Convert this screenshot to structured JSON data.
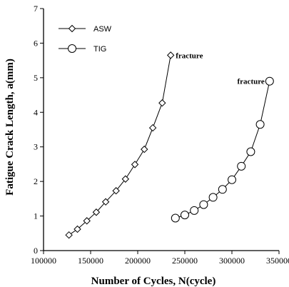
{
  "chart_data": {
    "type": "line",
    "xlabel": "Number of Cycles, N(cycle)",
    "ylabel": "Fatigue Crack Length, a(mm)",
    "xlim": [
      100000,
      350000
    ],
    "ylim": [
      0,
      7
    ],
    "xticks": [
      100000,
      150000,
      200000,
      250000,
      300000,
      350000
    ],
    "yticks": [
      0,
      1,
      2,
      3,
      4,
      5,
      6,
      7
    ],
    "grid": false,
    "legend_position": "top-left",
    "series": [
      {
        "name": "ASW",
        "marker": "diamond",
        "x": [
          127000,
          136000,
          146000,
          156000,
          166000,
          177000,
          187000,
          197000,
          207000,
          216000,
          226000,
          235000
        ],
        "y": [
          0.45,
          0.62,
          0.86,
          1.11,
          1.41,
          1.73,
          2.07,
          2.49,
          2.93,
          3.55,
          4.27,
          5.65
        ]
      },
      {
        "name": "TIG",
        "marker": "circle",
        "x": [
          240000,
          250000,
          260000,
          270000,
          280000,
          290000,
          300000,
          310000,
          320000,
          330000,
          340000
        ],
        "y": [
          0.94,
          1.03,
          1.16,
          1.33,
          1.54,
          1.77,
          2.05,
          2.44,
          2.86,
          3.65,
          4.9
        ]
      }
    ],
    "annotations": [
      {
        "text": "fracture",
        "series": 0,
        "point": 11
      },
      {
        "text": "fracture",
        "series": 1,
        "point": 10
      }
    ]
  }
}
